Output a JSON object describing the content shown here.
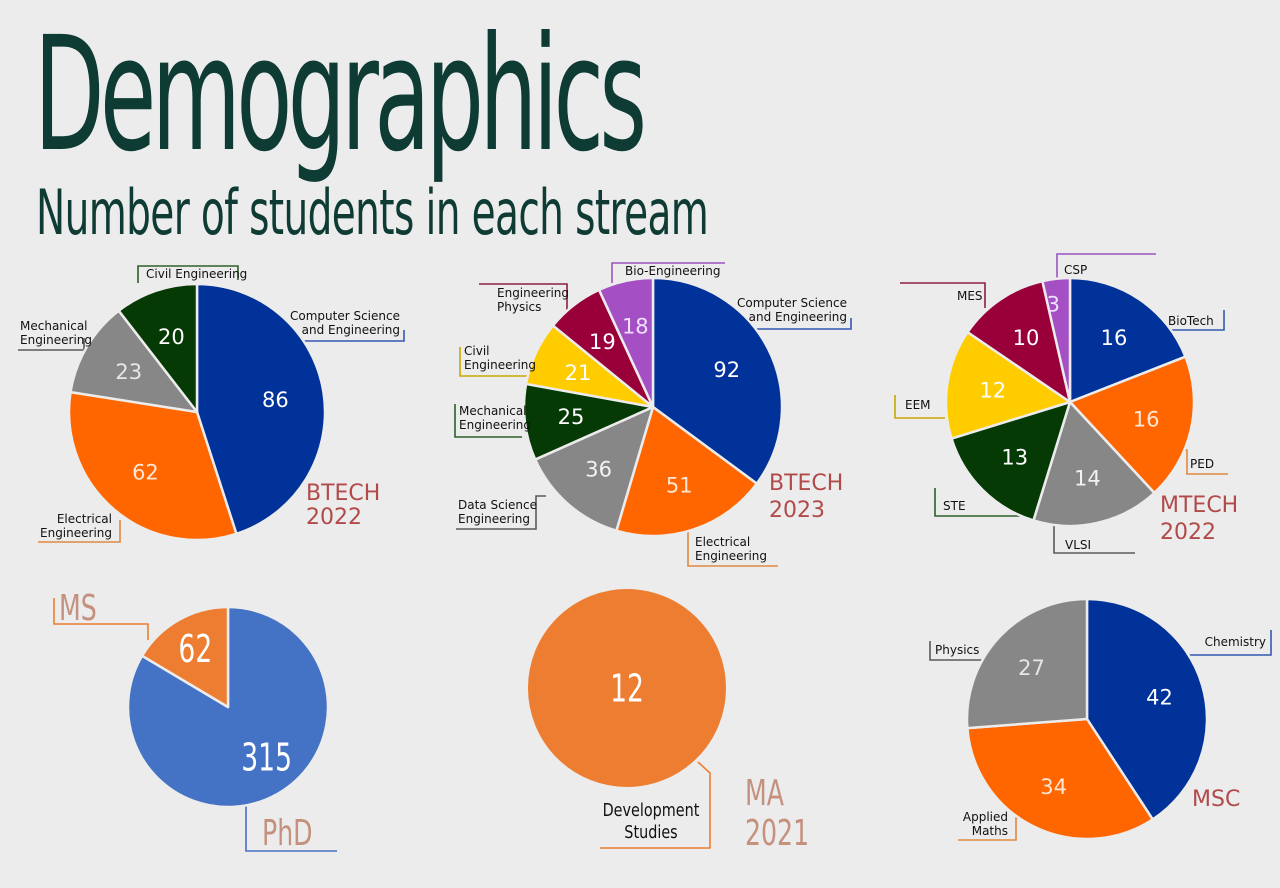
{
  "title": "Demographics",
  "subtitle": "Number of students in each stream",
  "chart_data": [
    {
      "id": "btech2022",
      "type": "pie",
      "title": [
        "BTECH",
        "2022"
      ],
      "slices": [
        {
          "label": [
            "Computer Science",
            "and Engineering"
          ],
          "value": 86,
          "color": "#00329a"
        },
        {
          "label": [
            "Electrical",
            "Engineering"
          ],
          "value": 62,
          "color": "#ff6600"
        },
        {
          "label": [
            "Mechanical",
            "Engineering"
          ],
          "value": 23,
          "color": "#878787"
        },
        {
          "label": [
            "Civil Engineering"
          ],
          "value": 20,
          "color": "#063a05"
        }
      ]
    },
    {
      "id": "btech2023",
      "type": "pie",
      "title": [
        "BTECH",
        "2023"
      ],
      "slices": [
        {
          "label": [
            "Computer Science",
            "and Engineering"
          ],
          "value": 92,
          "color": "#00329a"
        },
        {
          "label": [
            "Electrical",
            "Engineering"
          ],
          "value": 51,
          "color": "#ff6600"
        },
        {
          "label": [
            "Data Science",
            "Engineering"
          ],
          "value": 36,
          "color": "#878787"
        },
        {
          "label": [
            "Mechanical",
            "Engineering"
          ],
          "value": 25,
          "color": "#063a05"
        },
        {
          "label": [
            "Civil",
            "Engineering"
          ],
          "value": 21,
          "color": "#ffcc00"
        },
        {
          "label": [
            "Engineering",
            "Physics"
          ],
          "value": 19,
          "color": "#99003a"
        },
        {
          "label": [
            "Bio-Engineering"
          ],
          "value": 18,
          "color": "#a54fc4"
        }
      ]
    },
    {
      "id": "mtech2022",
      "type": "pie",
      "title": [
        "MTECH",
        "2022"
      ],
      "slices": [
        {
          "label": [
            "BioTech"
          ],
          "value": 16,
          "color": "#00329a"
        },
        {
          "label": [
            "PED"
          ],
          "value": 16,
          "color": "#ff6600"
        },
        {
          "label": [
            "VLSI"
          ],
          "value": 14,
          "color": "#878787"
        },
        {
          "label": [
            "STE"
          ],
          "value": 13,
          "color": "#063a05"
        },
        {
          "label": [
            "EEM"
          ],
          "value": 12,
          "color": "#ffcc00"
        },
        {
          "label": [
            "MES"
          ],
          "value": 10,
          "color": "#99003a"
        },
        {
          "label": [
            "CSP"
          ],
          "value": 3,
          "color": "#a54fc4"
        }
      ]
    },
    {
      "id": "phd",
      "type": "pie",
      "title": [
        "PhD"
      ],
      "slices": [
        {
          "label": [
            "PhD"
          ],
          "value": 315,
          "color": "#4472c4"
        },
        {
          "label": [
            "MS"
          ],
          "value": 62,
          "color": "#ed7d31"
        }
      ]
    },
    {
      "id": "ma2021",
      "type": "pie",
      "title": [
        "MA",
        "2021"
      ],
      "slices": [
        {
          "label": [
            "Development",
            "Studies"
          ],
          "value": 12,
          "color": "#ed7d31"
        }
      ]
    },
    {
      "id": "msc",
      "type": "pie",
      "title": [
        "MSC"
      ],
      "slices": [
        {
          "label": [
            "Chemistry"
          ],
          "value": 42,
          "color": "#00329a"
        },
        {
          "label": [
            "Applied",
            "Maths"
          ],
          "value": 34,
          "color": "#ff6600"
        },
        {
          "label": [
            "Physics"
          ],
          "value": 27,
          "color": "#878787"
        }
      ]
    }
  ]
}
